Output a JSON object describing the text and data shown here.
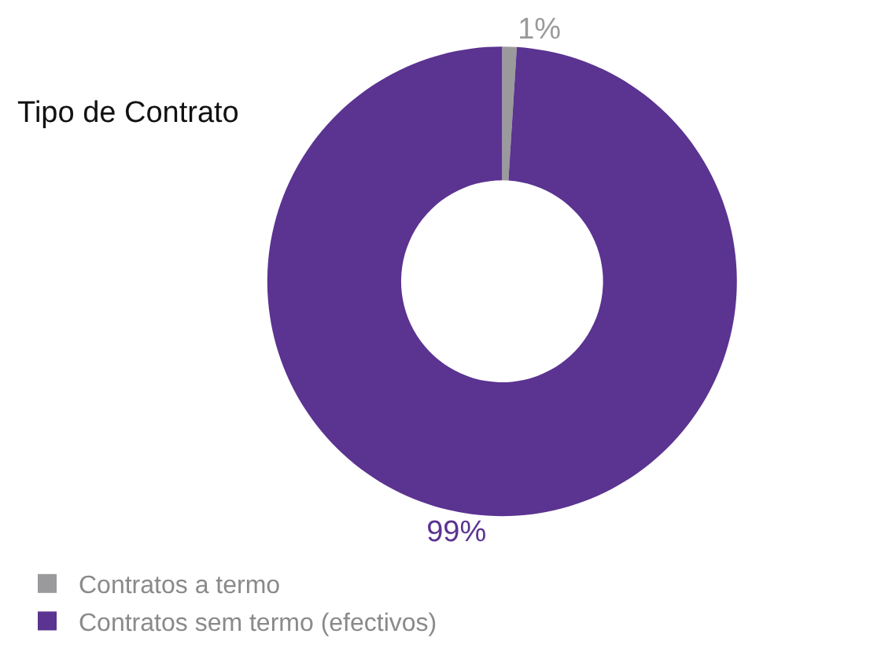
{
  "chart_data": {
    "type": "donut",
    "title": "Tipo de Contrato",
    "categories": [
      "Contratos a termo",
      "Contratos sem termo (efectivos)"
    ],
    "values": [
      1,
      99
    ],
    "colors": [
      "#9a9a9c",
      "#5b3391"
    ],
    "data_labels": true,
    "value_labels": [
      "1%",
      "99%"
    ],
    "legend": "bottom left"
  }
}
